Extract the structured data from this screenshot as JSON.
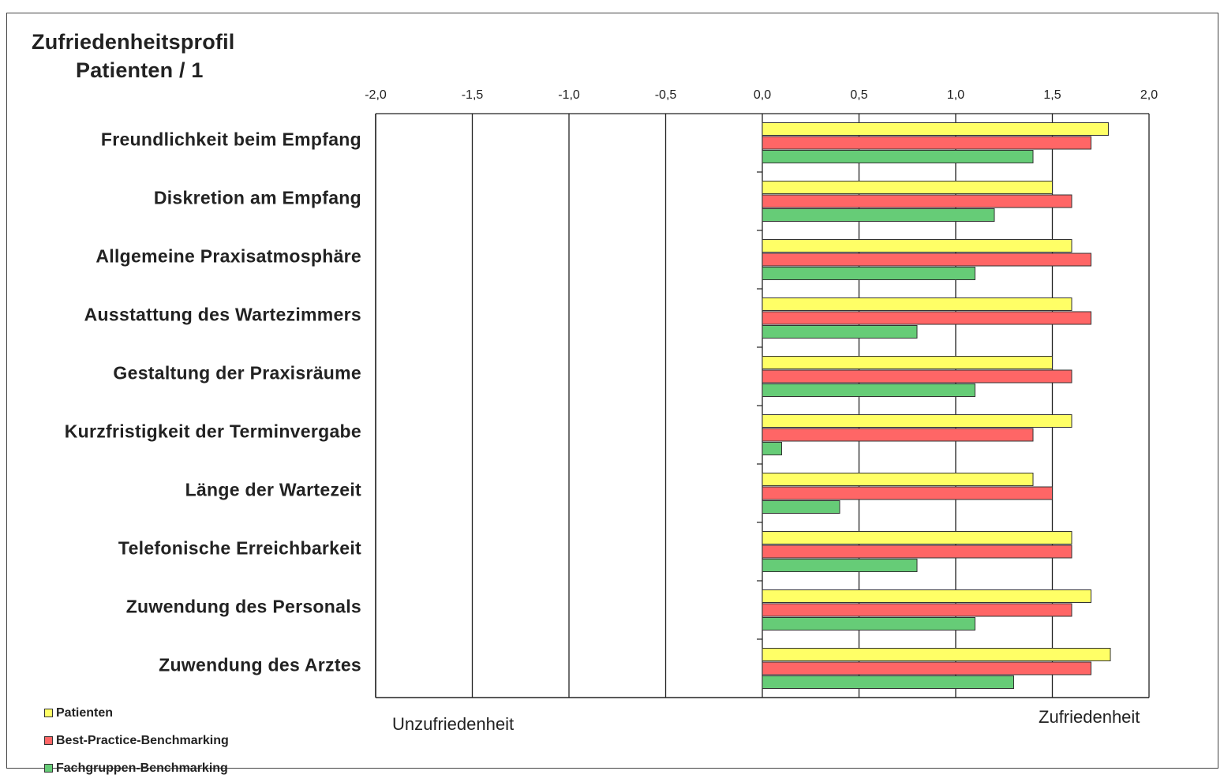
{
  "chart_data": {
    "type": "bar",
    "orientation": "horizontal",
    "title": "Zufriedenheitsprofil",
    "subtitle": "Patienten / 1",
    "categories": [
      "Freundlichkeit beim Empfang",
      "Diskretion am Empfang",
      "Allgemeine Praxisatmosphäre",
      "Ausstattung des Wartezimmers",
      "Gestaltung der Praxisräume",
      "Kurzfristigkeit der Terminvergabe",
      "Länge der Wartezeit",
      "Telefonische Erreichbarkeit",
      "Zuwendung des Personals",
      "Zuwendung des Arztes"
    ],
    "series": [
      {
        "name": "Patienten",
        "color": "#ffff66",
        "values": [
          1.79,
          1.5,
          1.6,
          1.6,
          1.5,
          1.6,
          1.4,
          1.6,
          1.7,
          1.8
        ]
      },
      {
        "name": "Best-Practice-Benchmarking",
        "color": "#ff6666",
        "values": [
          1.7,
          1.6,
          1.7,
          1.7,
          1.6,
          1.4,
          1.5,
          1.6,
          1.6,
          1.7
        ]
      },
      {
        "name": "Fachgruppen-Benchmarking",
        "color": "#66cc77",
        "values": [
          1.4,
          1.2,
          1.1,
          0.8,
          1.1,
          0.1,
          0.4,
          0.8,
          1.1,
          1.3
        ]
      }
    ],
    "xlim": [
      -2.0,
      2.0
    ],
    "x_ticks": [
      "-2,0",
      "-1,5",
      "-1,0",
      "-0,5",
      "0,0",
      "0,5",
      "1,0",
      "1,5",
      "2,0"
    ],
    "x_tick_values": [
      -2.0,
      -1.5,
      -1.0,
      -0.5,
      0.0,
      0.5,
      1.0,
      1.5,
      2.0
    ],
    "axis_caption_left": "Unzufriedenheit",
    "axis_caption_right": "Zufriedenheit",
    "grid": "vertical",
    "legend_position": "bottom-left"
  }
}
